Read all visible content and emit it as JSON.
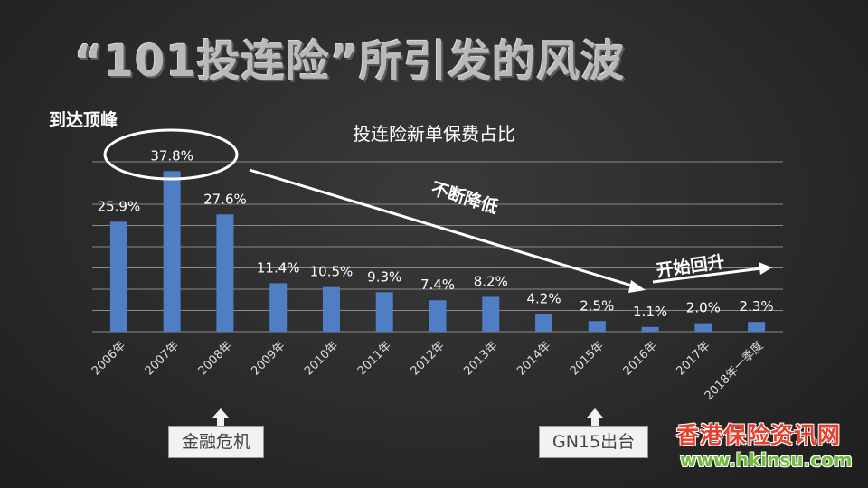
{
  "page": {
    "title": "“101投连险”所引发的风波",
    "peak_label": "到达顶峰",
    "annotation_decline": "不断降低",
    "annotation_rise": "开始回升",
    "callout_left": "金融危机",
    "callout_right": "GN15出台",
    "watermark_cn": "香港保险资讯网",
    "watermark_url": "www.hkinsu.com"
  },
  "chart_data": {
    "type": "bar",
    "title": "投连险新单保费占比",
    "categories": [
      "2006年",
      "2007年",
      "2008年",
      "2009年",
      "2010年",
      "2011年",
      "2012年",
      "2013年",
      "2014年",
      "2015年",
      "2016年",
      "2017年",
      "2018年一季度"
    ],
    "values": [
      25.9,
      37.8,
      27.6,
      11.4,
      10.5,
      9.3,
      7.4,
      8.2,
      4.2,
      2.5,
      1.1,
      2.0,
      2.3
    ],
    "value_labels": [
      "25.9%",
      "37.8%",
      "27.6%",
      "11.4%",
      "10.5%",
      "9.3%",
      "7.4%",
      "8.2%",
      "4.2%",
      "2.5%",
      "1.1%",
      "2.0%",
      "2.3%"
    ],
    "ylim": [
      0,
      40
    ],
    "grid": true,
    "bar_color": "#4f7ec5"
  }
}
